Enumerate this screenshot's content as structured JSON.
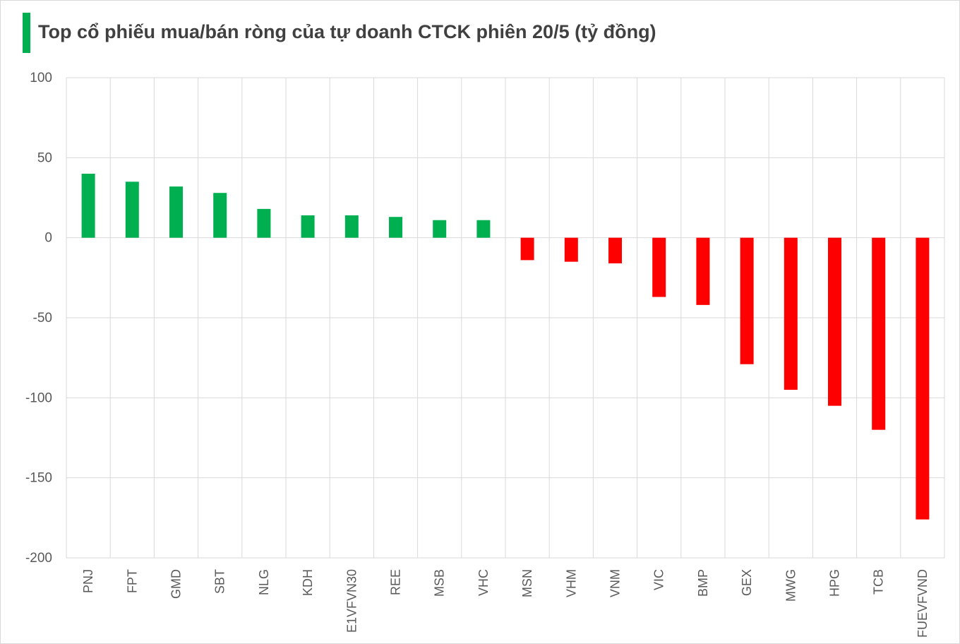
{
  "title": "Top cổ phiếu mua/bán ròng của tự doanh CTCK phiên 20/5 (tỷ đồng)",
  "colors": {
    "accent": "#00b050",
    "positive": "#00b050",
    "negative": "#ff0000",
    "grid": "#d9d9d9",
    "text": "#595959"
  },
  "chart_data": {
    "type": "bar",
    "title": "Top cổ phiếu mua/bán ròng của tự doanh CTCK phiên 20/5 (tỷ đồng)",
    "xlabel": "",
    "ylabel": "",
    "ylim": [
      -200,
      100
    ],
    "yticks": [
      100,
      50,
      0,
      -50,
      -100,
      -150,
      -200
    ],
    "grid": true,
    "legend": "none",
    "categories": [
      "PNJ",
      "FPT",
      "GMD",
      "SBT",
      "NLG",
      "KDH",
      "E1VFVN30",
      "REE",
      "MSB",
      "VHC",
      "MSN",
      "VHM",
      "VNM",
      "VIC",
      "BMP",
      "GEX",
      "MWG",
      "HPG",
      "TCB",
      "FUEVFVND"
    ],
    "values": [
      40,
      35,
      32,
      28,
      18,
      14,
      14,
      13,
      11,
      11,
      -14,
      -15,
      -16,
      -37,
      -42,
      -79,
      -95,
      -105,
      -120,
      -176
    ]
  }
}
